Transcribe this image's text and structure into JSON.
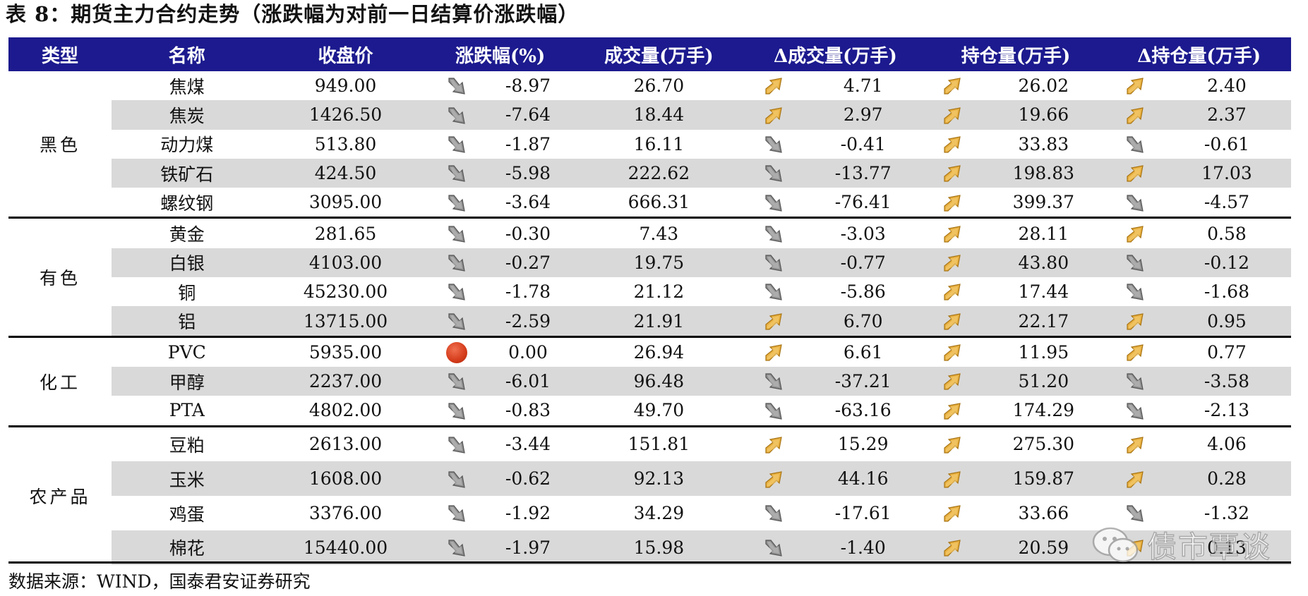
{
  "title": "表 8：期货主力合约走势（涨跌幅为对前一日结算价涨跌幅）",
  "headers": {
    "type": "类型",
    "name": "名称",
    "close": "收盘价",
    "change": "涨跌幅(%)",
    "volume": "成交量(万手)",
    "delta_volume": "Δ成交量(万手)",
    "open_interest": "持仓量(万手)",
    "delta_open_interest": "Δ持仓量(万手)"
  },
  "icon_legend": {
    "up": "gold-up-arrow-icon",
    "down": "gray-down-arrow-icon",
    "flat": "red-dot-icon"
  },
  "colors": {
    "header_bg": "#1c1a8e",
    "shade": "#d9d9d9",
    "up_icon": "#e3a52a",
    "down_icon": "#8a8a8a",
    "flat_icon": "#d43b1a"
  },
  "groups": [
    {
      "category": "黑色",
      "rows": [
        {
          "name": "焦煤",
          "close": "949.00",
          "change": "-8.97",
          "change_dir": "down",
          "volume": "26.70",
          "dvol": "4.71",
          "dvol_dir": "up",
          "oi": "26.02",
          "oi_dir": "up",
          "doi": "2.40",
          "doi_dir": "up"
        },
        {
          "name": "焦炭",
          "close": "1426.50",
          "change": "-7.64",
          "change_dir": "down",
          "volume": "18.44",
          "dvol": "2.97",
          "dvol_dir": "up",
          "oi": "19.66",
          "oi_dir": "up",
          "doi": "2.37",
          "doi_dir": "up"
        },
        {
          "name": "动力煤",
          "close": "513.80",
          "change": "-1.87",
          "change_dir": "down",
          "volume": "16.11",
          "dvol": "-0.41",
          "dvol_dir": "down",
          "oi": "33.83",
          "oi_dir": "up",
          "doi": "-0.61",
          "doi_dir": "down"
        },
        {
          "name": "铁矿石",
          "close": "424.50",
          "change": "-5.98",
          "change_dir": "down",
          "volume": "222.62",
          "dvol": "-13.77",
          "dvol_dir": "down",
          "oi": "198.83",
          "oi_dir": "up",
          "doi": "17.03",
          "doi_dir": "up"
        },
        {
          "name": "螺纹钢",
          "close": "3095.00",
          "change": "-3.64",
          "change_dir": "down",
          "volume": "666.31",
          "dvol": "-76.41",
          "dvol_dir": "down",
          "oi": "399.37",
          "oi_dir": "up",
          "doi": "-4.57",
          "doi_dir": "down"
        }
      ]
    },
    {
      "category": "有色",
      "rows": [
        {
          "name": "黄金",
          "close": "281.65",
          "change": "-0.30",
          "change_dir": "down",
          "volume": "7.43",
          "dvol": "-3.03",
          "dvol_dir": "down",
          "oi": "28.11",
          "oi_dir": "up",
          "doi": "0.58",
          "doi_dir": "up"
        },
        {
          "name": "白银",
          "close": "4103.00",
          "change": "-0.27",
          "change_dir": "down",
          "volume": "19.75",
          "dvol": "-0.77",
          "dvol_dir": "down",
          "oi": "43.80",
          "oi_dir": "up",
          "doi": "-0.12",
          "doi_dir": "down"
        },
        {
          "name": "铜",
          "close": "45230.00",
          "change": "-1.78",
          "change_dir": "down",
          "volume": "21.12",
          "dvol": "-5.86",
          "dvol_dir": "down",
          "oi": "17.44",
          "oi_dir": "up",
          "doi": "-1.68",
          "doi_dir": "down"
        },
        {
          "name": "铝",
          "close": "13715.00",
          "change": "-2.59",
          "change_dir": "down",
          "volume": "21.91",
          "dvol": "6.70",
          "dvol_dir": "up",
          "oi": "22.17",
          "oi_dir": "up",
          "doi": "0.95",
          "doi_dir": "up"
        }
      ]
    },
    {
      "category": "化工",
      "rows": [
        {
          "name": "PVC",
          "close": "5935.00",
          "change": "0.00",
          "change_dir": "flat",
          "volume": "26.94",
          "dvol": "6.61",
          "dvol_dir": "up",
          "oi": "11.95",
          "oi_dir": "up",
          "doi": "0.77",
          "doi_dir": "up"
        },
        {
          "name": "甲醇",
          "close": "2237.00",
          "change": "-6.01",
          "change_dir": "down",
          "volume": "96.48",
          "dvol": "-37.21",
          "dvol_dir": "down",
          "oi": "51.20",
          "oi_dir": "up",
          "doi": "-3.58",
          "doi_dir": "down"
        },
        {
          "name": "PTA",
          "close": "4802.00",
          "change": "-0.83",
          "change_dir": "down",
          "volume": "49.70",
          "dvol": "-63.16",
          "dvol_dir": "down",
          "oi": "174.29",
          "oi_dir": "up",
          "doi": "-2.13",
          "doi_dir": "down"
        }
      ]
    },
    {
      "category": "农产品",
      "rows": [
        {
          "name": "豆粕",
          "close": "2613.00",
          "change": "-3.44",
          "change_dir": "down",
          "volume": "151.81",
          "dvol": "15.29",
          "dvol_dir": "up",
          "oi": "275.30",
          "oi_dir": "up",
          "doi": "4.06",
          "doi_dir": "up"
        },
        {
          "name": "玉米",
          "close": "1608.00",
          "change": "-0.62",
          "change_dir": "down",
          "volume": "92.13",
          "dvol": "44.16",
          "dvol_dir": "up",
          "oi": "159.87",
          "oi_dir": "up",
          "doi": "0.28",
          "doi_dir": "up"
        },
        {
          "name": "鸡蛋",
          "close": "3376.00",
          "change": "-1.92",
          "change_dir": "down",
          "volume": "34.29",
          "dvol": "-17.61",
          "dvol_dir": "down",
          "oi": "33.66",
          "oi_dir": "up",
          "doi": "-1.32",
          "doi_dir": "down"
        },
        {
          "name": "棉花",
          "close": "15440.00",
          "change": "-1.97",
          "change_dir": "down",
          "volume": "15.98",
          "dvol": "-1.40",
          "dvol_dir": "down",
          "oi": "20.59",
          "oi_dir": "up",
          "doi": "0.13",
          "doi_dir": "up"
        }
      ]
    }
  ],
  "source": "数据来源：WIND，国泰君安证券研究",
  "watermark": "债市覃谈"
}
